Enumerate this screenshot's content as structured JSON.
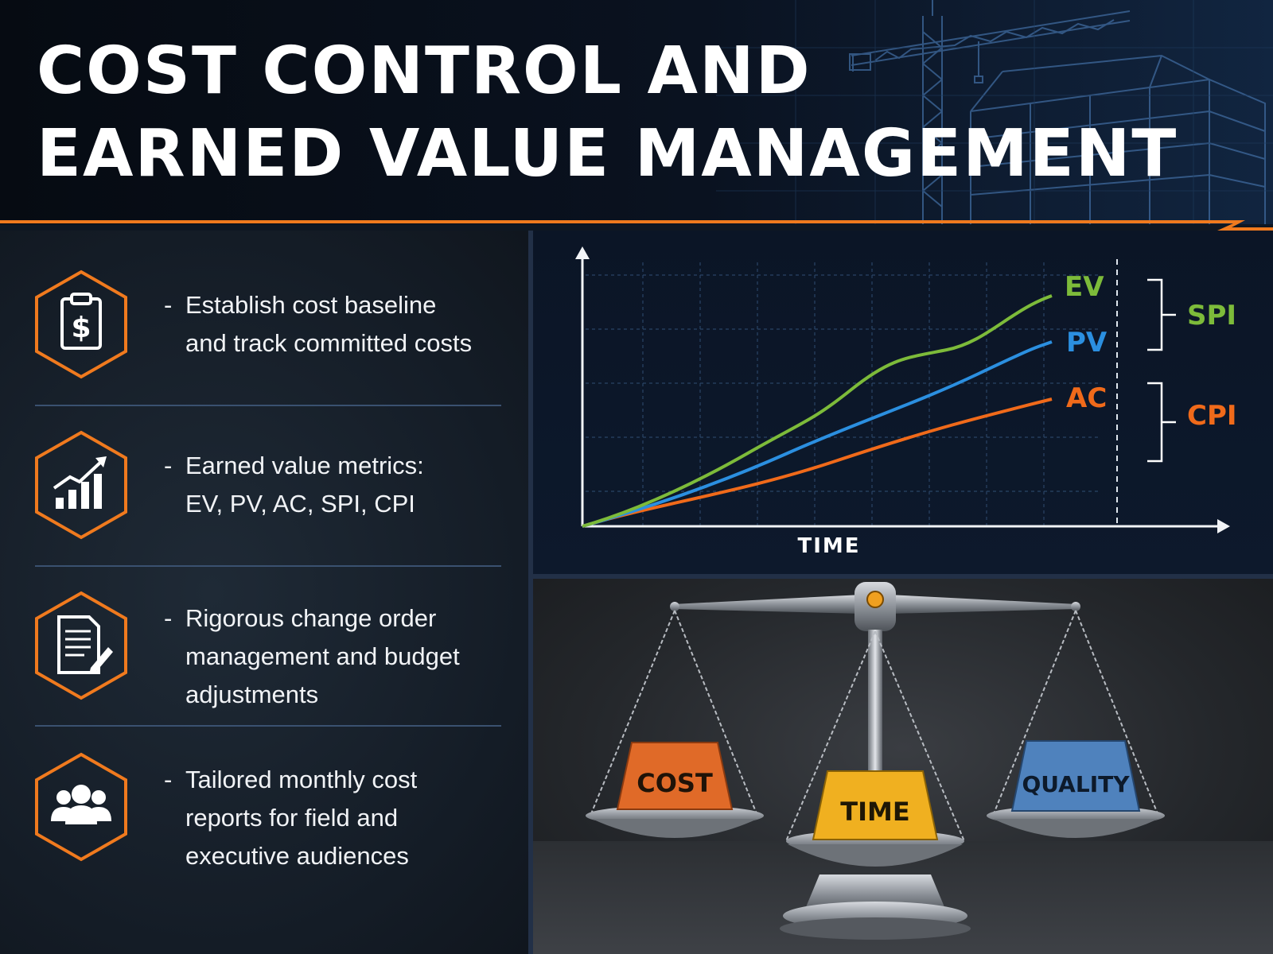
{
  "header": {
    "title_line1": "COST CONTROL AND",
    "title_line2": "EARNED VALUE MANAGEMENT"
  },
  "features": [
    {
      "icon": "clipboard-dollar-icon",
      "dash": "-",
      "lines": [
        "Establish cost baseline",
        "and track committed costs"
      ]
    },
    {
      "icon": "bar-chart-arrow-icon",
      "dash": "-",
      "lines": [
        "Earned value metrics:",
        "EV, PV, AC, SPI, CPI"
      ]
    },
    {
      "icon": "document-pen-icon",
      "dash": "-",
      "lines": [
        "Rigorous change order",
        "management and budget",
        "adjustments"
      ]
    },
    {
      "icon": "people-group-icon",
      "dash": "-",
      "lines": [
        "Tailored monthly cost",
        "reports for field and",
        "executive audiences"
      ]
    }
  ],
  "chart": {
    "xlabel": "TIME",
    "series": [
      {
        "name": "EV",
        "color": "#7dbb3a"
      },
      {
        "name": "PV",
        "color": "#2b8fe0"
      },
      {
        "name": "AC",
        "color": "#f06a1a"
      }
    ],
    "indices": [
      {
        "name": "SPI",
        "color": "#7dbb3a"
      },
      {
        "name": "CPI",
        "color": "#f06a1a"
      }
    ]
  },
  "scale": {
    "weights": [
      {
        "label": "COST",
        "color": "#e06a28"
      },
      {
        "label": "TIME",
        "color": "#f0b020"
      },
      {
        "label": "QUALITY",
        "color": "#4f82bd"
      }
    ]
  },
  "colors": {
    "accent": "#f07a1e",
    "background": "#0f1722"
  }
}
